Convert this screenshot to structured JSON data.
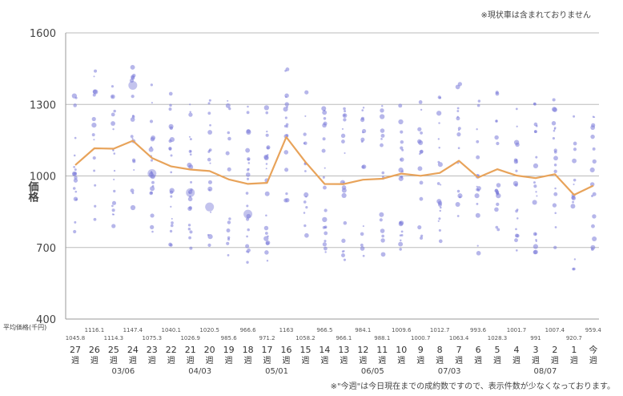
{
  "notes": {
    "top": "※現状車は含まれておりません",
    "bottom": "※\"今週\"は今日現在までの成約数ですので、表示件数が少なくなっております。"
  },
  "chart_data": {
    "type": "scatter",
    "y_axis_label": "価格",
    "yticks": [
      400,
      700,
      1000,
      1300,
      1600
    ],
    "ylim": [
      400,
      1600
    ],
    "avg_price_label": "平均価格(千円)",
    "week_suffix": "週",
    "categories": [
      "27",
      "26",
      "25",
      "24",
      "23",
      "22",
      "21",
      "20",
      "19",
      "18",
      "17",
      "16",
      "15",
      "14",
      "13",
      "12",
      "11",
      "10",
      "9",
      "8",
      "7",
      "6",
      "5",
      "4",
      "3",
      "2",
      "1",
      "今"
    ],
    "average_prices": [
      1045.8,
      1116.1,
      1114.3,
      1147.4,
      1075.3,
      1040.1,
      1026.9,
      1020.5,
      985.6,
      966.6,
      971.2,
      1163,
      1058.2,
      966.5,
      966.1,
      984.1,
      988.1,
      1009.6,
      1000.7,
      1012.7,
      1063.4,
      993.6,
      1028.3,
      1001.7,
      991.0,
      1007.4,
      920.7,
      959.4
    ],
    "date_labels": [
      {
        "label": "03/06",
        "category": "24"
      },
      {
        "label": "04/03",
        "category": "20"
      },
      {
        "label": "05/01",
        "category": "16"
      },
      {
        "label": "06/05",
        "category": "11"
      },
      {
        "label": "07/03",
        "category": "7"
      },
      {
        "label": "08/07",
        "category": "2"
      }
    ],
    "grid": true,
    "line_color": "#e8a35a",
    "point_color": "#7a7ad8"
  }
}
